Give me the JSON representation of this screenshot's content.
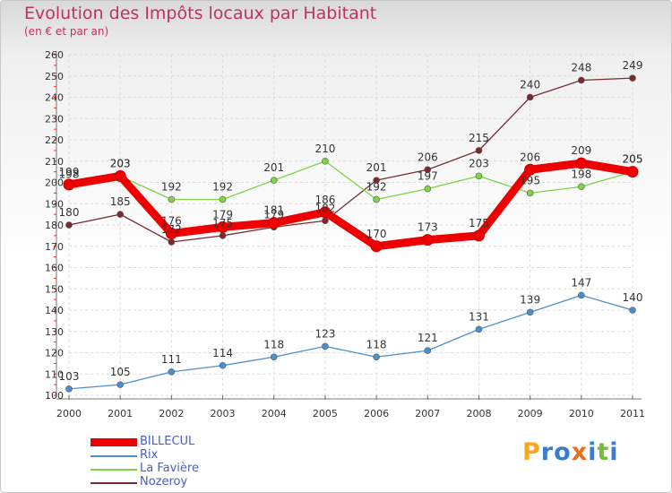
{
  "title": "Evolution des Impôts locaux par Habitant",
  "subtitle": "(en € et par an)",
  "logo": {
    "letters": [
      {
        "ch": "P",
        "color": "#f5a623"
      },
      {
        "ch": "r",
        "color": "#3a7dc9"
      },
      {
        "ch": "o",
        "color": "#3a7dc9"
      },
      {
        "ch": "x",
        "color": "#e8701a"
      },
      {
        "ch": "i",
        "color": "#3a7dc9"
      },
      {
        "ch": "t",
        "color": "#6fbf3b"
      },
      {
        "ch": "i",
        "color": "#3a7dc9"
      }
    ]
  },
  "chart_data": {
    "type": "line",
    "title": "Evolution des Impôts locaux par Habitant",
    "subtitle": "(en € et par an)",
    "categories": [
      "2000",
      "2001",
      "2002",
      "2003",
      "2004",
      "2005",
      "2006",
      "2007",
      "2008",
      "2009",
      "2010",
      "2011"
    ],
    "ylim": [
      100,
      260
    ],
    "yticks": [
      100,
      110,
      120,
      130,
      140,
      150,
      160,
      170,
      180,
      190,
      200,
      210,
      220,
      230,
      240,
      250,
      260
    ],
    "grid": true,
    "legend_position": "bottom-left",
    "series": [
      {
        "name": "BILLECUL",
        "color": "#ee0000",
        "values": [
          199,
          203,
          176,
          179,
          181,
          186,
          170,
          173,
          175,
          206,
          209,
          205
        ],
        "labels": [
          "199",
          "203",
          "176",
          "179",
          "181",
          "186",
          "170",
          "173",
          "175",
          "206",
          "209",
          "205"
        ]
      },
      {
        "name": "Rix",
        "color": "#4a8fd0",
        "values": [
          103,
          105,
          111,
          114,
          118,
          123,
          118,
          121,
          131,
          139,
          147,
          140
        ],
        "labels": [
          "103",
          "105",
          "111",
          "114",
          "118",
          "123",
          "118",
          "121",
          "131",
          "139",
          "147",
          "140"
        ]
      },
      {
        "name": "La Favière",
        "color": "#7ed445",
        "values": [
          198,
          203,
          192,
          192,
          201,
          210,
          192,
          197,
          203,
          195,
          198,
          205
        ],
        "labels": [
          "198",
          "203",
          "192",
          "192",
          "201",
          "210",
          "192",
          "197",
          "203",
          "195",
          "198",
          "205"
        ]
      },
      {
        "name": "Nozeroy",
        "color": "#7a2a30",
        "values": [
          180,
          185,
          172,
          175,
          179,
          182,
          201,
          206,
          215,
          240,
          248,
          249
        ],
        "labels": [
          "180",
          "185",
          "172",
          "175",
          "179",
          "182",
          "201",
          "206",
          "215",
          "240",
          "248",
          "249"
        ]
      }
    ]
  }
}
